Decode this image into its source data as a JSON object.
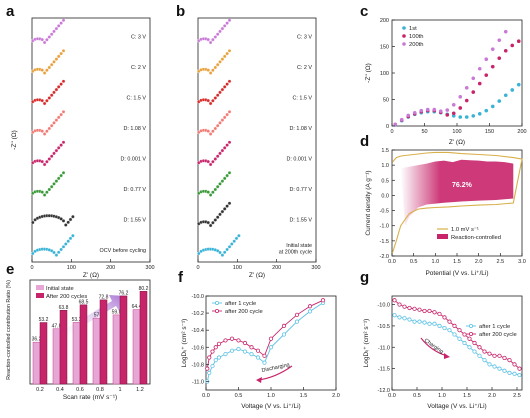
{
  "panels": {
    "a": {
      "label": "a",
      "xlabel": "Z' (Ω)",
      "ylabel": "-Z'' (Ω)",
      "xticks": [
        "0",
        "100",
        "200",
        "300"
      ],
      "curves": [
        {
          "label": "C: 3 V",
          "color": "#c97ad6"
        },
        {
          "label": "C: 2 V",
          "color": "#e8a13c"
        },
        {
          "label": "C: 1.5 V",
          "color": "#d62a2a"
        },
        {
          "label": "D: 1.08 V",
          "color": "#f07a74"
        },
        {
          "label": "D: 0.001  V",
          "color": "#c8246a"
        },
        {
          "label": "D: 0.77 V",
          "color": "#3a9a3a"
        },
        {
          "label": "D: 1.55 V",
          "color": "#333333"
        },
        {
          "label": "OCV before cycling",
          "color": "#39b3d6"
        }
      ]
    },
    "b": {
      "label": "b",
      "xlabel": "Z' (Ω)",
      "xticks": [
        "0",
        "100",
        "200",
        "300"
      ],
      "curves": [
        {
          "label": "C: 3 V",
          "color": "#c97ad6"
        },
        {
          "label": "C: 2 V",
          "color": "#e8a13c"
        },
        {
          "label": "C: 1.5 V",
          "color": "#d62a2a"
        },
        {
          "label": "D: 1.08 V",
          "color": "#f07a74"
        },
        {
          "label": "D: 0.001 V",
          "color": "#c8246a"
        },
        {
          "label": "D: 0.77 V",
          "color": "#3a9a3a"
        },
        {
          "label": "D: 1.55 V",
          "color": "#333333"
        },
        {
          "label": "Initial state\nat 200th cycle",
          "color": "#39b3d6"
        }
      ]
    },
    "c": {
      "label": "c",
      "xlabel": "Z' (Ω)",
      "ylabel": "-Z'' (Ω)",
      "xticks": [
        "0",
        "50",
        "100",
        "150",
        "200"
      ],
      "yticks": [
        "0",
        "50",
        "100",
        "150",
        "200"
      ],
      "legend": [
        "1st",
        "100th",
        "200th"
      ]
    },
    "d": {
      "label": "d",
      "xlabel": "Potential (V vs. Li⁺/Li)",
      "ylabel": "Current density (A g⁻¹)",
      "xticks": [
        "0.0",
        "0.5",
        "1.0",
        "1.5",
        "2.0",
        "2.5",
        "3.0"
      ],
      "yticks": [
        "-2.0",
        "-1.5",
        "-1.0",
        "-0.5",
        "0.0",
        "0.5",
        "1.0",
        "1.5"
      ],
      "percent": "76.2%",
      "legend": [
        "1.0 mV s⁻¹",
        "Reaction-controlled"
      ]
    },
    "e": {
      "label": "e",
      "xlabel": "Scan rate (mV s⁻¹)",
      "ylabel": "Reaction-controlled contribution Ratio (%)",
      "xticks": [
        "0.2",
        "0.4",
        "0.6",
        "0.8",
        "1",
        "1.2"
      ],
      "legend": [
        "Initial state",
        "After 200 cycles"
      ]
    },
    "f": {
      "label": "f",
      "xlabel": "Voltage (V vs. Li⁺/Li)",
      "ylabel": "LogDₗᵢ⁺ (cm² s⁻¹)",
      "xticks": [
        "0.0",
        "0.5",
        "1.0",
        "1.5",
        "2.0"
      ],
      "yticks": [
        "-11.0",
        "-10.8",
        "-10.6",
        "-10.4",
        "-10.2",
        "-10.0"
      ],
      "legend": [
        "after 1 cycle",
        "after 200 cycle"
      ],
      "arrow_label": "Discharging"
    },
    "g": {
      "label": "g",
      "xlabel": "Voltage (V vs. Li⁺/Li)",
      "ylabel": "LogDₗᵢ⁺ (cm² s⁻¹)",
      "xticks": [
        "0.0",
        "0.5",
        "1.0",
        "1.5",
        "2.0",
        "2.5"
      ],
      "yticks": [
        "-12.0",
        "-11.5",
        "-11.0",
        "-10.5",
        "-10.0"
      ],
      "legend": [
        "after 1 cycle",
        "after 200 cycle"
      ],
      "arrow_label": "Charging"
    }
  },
  "colors": {
    "c1": "#39b3d6",
    "c100": "#c8246a",
    "c200": "#c97ad6",
    "bar_init": "#e7a7d6",
    "bar_after": "#c8246a",
    "cv_line": "#d8b04a",
    "cv_fill": "#c8246a",
    "f_1": "#5ec2e6",
    "f_200": "#c8246a"
  },
  "chart_data": [
    {
      "panel": "c",
      "type": "scatter",
      "xlabel": "Z' (Ω)",
      "ylabel": "-Z'' (Ω)",
      "xlim": [
        0,
        200
      ],
      "ylim": [
        0,
        200
      ],
      "series": [
        {
          "name": "1st",
          "x": [
            5,
            15,
            25,
            35,
            45,
            55,
            65,
            75,
            85,
            95,
            105,
            115,
            125,
            135,
            145,
            155,
            165,
            175,
            185,
            195
          ],
          "y": [
            2,
            10,
            17,
            22,
            25,
            27,
            27,
            25,
            22,
            19,
            17,
            17,
            19,
            23,
            29,
            37,
            47,
            58,
            68,
            78
          ]
        },
        {
          "name": "100th",
          "x": [
            5,
            15,
            25,
            35,
            45,
            55,
            65,
            75,
            85,
            95,
            105,
            115,
            125,
            135,
            145,
            155,
            165,
            175,
            185,
            195
          ],
          "y": [
            3,
            11,
            18,
            23,
            27,
            29,
            29,
            26,
            21,
            24,
            34,
            48,
            64,
            80,
            96,
            112,
            128,
            142,
            152,
            160
          ]
        },
        {
          "name": "200th",
          "x": [
            5,
            15,
            25,
            35,
            45,
            55,
            65,
            75,
            85,
            95,
            105,
            115,
            125,
            135,
            145,
            155,
            165,
            175
          ],
          "y": [
            3,
            12,
            20,
            25,
            29,
            31,
            31,
            28,
            30,
            40,
            55,
            72,
            90,
            108,
            126,
            145,
            162,
            178
          ]
        }
      ]
    },
    {
      "panel": "d",
      "type": "line",
      "xlabel": "Potential (V vs. Li⁺/Li)",
      "ylabel": "Current density (A g⁻¹)",
      "xlim": [
        0,
        3
      ],
      "ylim": [
        -2.0,
        1.5
      ],
      "series": [
        {
          "name": "1.0 mV s⁻¹",
          "x": [
            0.01,
            0.1,
            0.2,
            0.3,
            0.5,
            0.8,
            1.0,
            1.3,
            1.6,
            2.0,
            2.4,
            2.8,
            3.0,
            2.8,
            2.4,
            2.0,
            1.6,
            1.3,
            1.0,
            0.8,
            0.6,
            0.4,
            0.2,
            0.1,
            0.01
          ],
          "y": [
            1.1,
            1.25,
            1.3,
            1.32,
            1.35,
            1.4,
            1.42,
            1.42,
            1.38,
            1.35,
            1.32,
            1.25,
            1.2,
            -0.25,
            -0.3,
            -0.32,
            -0.35,
            -0.38,
            -0.4,
            -0.42,
            -0.45,
            -0.6,
            -1.0,
            -1.5,
            -1.9
          ]
        },
        {
          "name": "Reaction-controlled",
          "x": [
            0.2,
            0.4,
            0.6,
            0.8,
            1.0,
            1.2,
            1.4,
            1.6,
            1.8,
            2.0,
            2.2,
            2.4,
            2.6,
            2.8,
            2.8,
            2.4,
            2.0,
            1.6,
            1.2,
            0.8,
            0.6,
            0.4,
            0.3
          ],
          "y": [
            0.9,
            0.95,
            1.0,
            1.05,
            1.12,
            1.15,
            1.1,
            1.18,
            1.16,
            1.15,
            1.12,
            1.12,
            1.1,
            1.05,
            -0.1,
            -0.15,
            -0.17,
            -0.2,
            -0.24,
            -0.3,
            -0.4,
            -0.7,
            -1.0
          ]
        }
      ]
    },
    {
      "panel": "e",
      "type": "bar",
      "xlabel": "Scan rate (mV s⁻¹)",
      "ylabel": "Reaction-controlled contribution Ratio (%)",
      "categories": [
        "0.2",
        "0.4",
        "0.6",
        "0.8",
        "1",
        "1.2"
      ],
      "ylim": [
        0,
        90
      ],
      "series": [
        {
          "name": "Initial state",
          "values": [
            36.2,
            47.8,
            53.3,
            57.0,
            59.8,
            64.4
          ]
        },
        {
          "name": "After 200 cycles",
          "values": [
            53.2,
            63.8,
            68.5,
            72.8,
            76.2,
            80.2
          ]
        }
      ]
    },
    {
      "panel": "f",
      "type": "line",
      "xlabel": "Voltage (V vs. Li⁺/Li)",
      "ylabel": "LogD (cm² s⁻¹)",
      "xlim": [
        0,
        2.0
      ],
      "ylim": [
        -11.1,
        -10.0
      ],
      "series": [
        {
          "name": "after 1 cycle",
          "x": [
            0.02,
            0.05,
            0.1,
            0.15,
            0.2,
            0.3,
            0.4,
            0.5,
            0.6,
            0.7,
            0.8,
            0.9,
            1.0,
            1.2,
            1.4,
            1.6,
            1.8
          ],
          "y": [
            -11.0,
            -10.9,
            -10.82,
            -10.75,
            -10.72,
            -10.68,
            -10.64,
            -10.62,
            -10.65,
            -10.68,
            -10.72,
            -10.78,
            -10.6,
            -10.45,
            -10.3,
            -10.18,
            -10.08
          ]
        },
        {
          "name": "after 200 cycle",
          "x": [
            0.02,
            0.05,
            0.1,
            0.15,
            0.2,
            0.3,
            0.4,
            0.5,
            0.6,
            0.7,
            0.8,
            0.9,
            1.0,
            1.2,
            1.4,
            1.6,
            1.8
          ],
          "y": [
            -10.85,
            -10.72,
            -10.65,
            -10.6,
            -10.56,
            -10.52,
            -10.5,
            -10.52,
            -10.55,
            -10.6,
            -10.64,
            -10.7,
            -10.5,
            -10.35,
            -10.22,
            -10.12,
            -10.05
          ]
        }
      ]
    },
    {
      "panel": "g",
      "type": "line",
      "xlabel": "Voltage (V vs. Li⁺/Li)",
      "ylabel": "LogD (cm² s⁻¹)",
      "xlim": [
        0,
        2.6
      ],
      "ylim": [
        -12.0,
        -9.8
      ],
      "series": [
        {
          "name": "after 1 cycle",
          "x": [
            0.05,
            0.15,
            0.25,
            0.35,
            0.45,
            0.55,
            0.65,
            0.75,
            0.85,
            0.95,
            1.05,
            1.15,
            1.25,
            1.35,
            1.45,
            1.55,
            1.65,
            1.75,
            1.85,
            1.95,
            2.05,
            2.15,
            2.25,
            2.35,
            2.45,
            2.55
          ],
          "y": [
            -10.25,
            -10.3,
            -10.32,
            -10.35,
            -10.4,
            -10.4,
            -10.42,
            -10.45,
            -10.45,
            -10.5,
            -10.55,
            -10.6,
            -10.7,
            -10.8,
            -10.9,
            -11.0,
            -11.1,
            -11.2,
            -11.3,
            -11.4,
            -11.45,
            -11.5,
            -11.55,
            -11.6,
            -11.62,
            -11.65
          ]
        },
        {
          "name": "after 200 cycle",
          "x": [
            0.05,
            0.15,
            0.25,
            0.35,
            0.45,
            0.55,
            0.65,
            0.75,
            0.85,
            0.95,
            1.05,
            1.15,
            1.25,
            1.35,
            1.45,
            1.55,
            1.65,
            1.75,
            1.85,
            1.95,
            2.05,
            2.15,
            2.25,
            2.35,
            2.45,
            2.55
          ],
          "y": [
            -9.9,
            -10.0,
            -10.05,
            -10.08,
            -10.1,
            -10.12,
            -10.15,
            -10.15,
            -10.18,
            -10.22,
            -10.3,
            -10.4,
            -10.5,
            -10.6,
            -10.7,
            -10.8,
            -10.9,
            -11.0,
            -11.1,
            -11.15,
            -11.2,
            -11.2,
            -11.25,
            -11.3,
            -11.4,
            -11.5
          ]
        }
      ]
    }
  ]
}
